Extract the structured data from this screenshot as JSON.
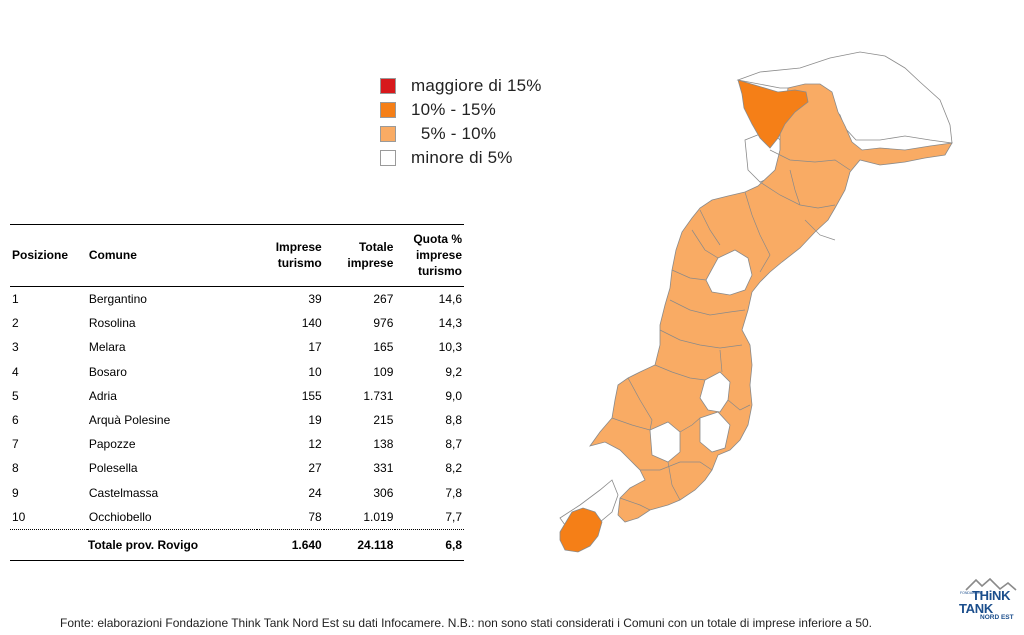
{
  "legend": [
    {
      "label": "maggiore di 15%",
      "color": "#d7191c"
    },
    {
      "label": "10% - 15%",
      "color": "#f57f17"
    },
    {
      "label": "  5% - 10%",
      "color": "#f9ab64"
    },
    {
      "label": "minore di 5%",
      "color": "#ffffff"
    }
  ],
  "table": {
    "headers": {
      "pos": "Posizione",
      "comune": "Comune",
      "imprese": [
        "Imprese",
        "turismo"
      ],
      "totale": [
        "Totale",
        "imprese"
      ],
      "quota": [
        "Quota %",
        "imprese",
        "turismo"
      ]
    },
    "rows": [
      {
        "pos": "1",
        "comune": "Bergantino",
        "imprese": "39",
        "totale": "267",
        "quota": "14,6"
      },
      {
        "pos": "2",
        "comune": "Rosolina",
        "imprese": "140",
        "totale": "976",
        "quota": "14,3"
      },
      {
        "pos": "3",
        "comune": "Melara",
        "imprese": "17",
        "totale": "165",
        "quota": "10,3"
      },
      {
        "pos": "4",
        "comune": "Bosaro",
        "imprese": "10",
        "totale": "109",
        "quota": "9,2"
      },
      {
        "pos": "5",
        "comune": "Adria",
        "imprese": "155",
        "totale": "1.731",
        "quota": "9,0"
      },
      {
        "pos": "6",
        "comune": "Arquà  Polesine",
        "imprese": "19",
        "totale": "215",
        "quota": "8,8"
      },
      {
        "pos": "7",
        "comune": "Papozze",
        "imprese": "12",
        "totale": "138",
        "quota": "8,7"
      },
      {
        "pos": "8",
        "comune": "Polesella",
        "imprese": "27",
        "totale": "331",
        "quota": "8,2"
      },
      {
        "pos": "9",
        "comune": "Castelmassa",
        "imprese": "24",
        "totale": "306",
        "quota": "7,8"
      },
      {
        "pos": "10",
        "comune": "Occhiobello",
        "imprese": "78",
        "totale": "1.019",
        "quota": "7,7"
      }
    ],
    "total": {
      "pos": "",
      "comune": "Totale prov. Rovigo",
      "imprese": "1.640",
      "totale": "24.118",
      "quota": "6,8"
    }
  },
  "map": {
    "fill_5_10": "#f9ab64",
    "fill_10_15": "#f57f17",
    "fill_lt5": "#ffffff",
    "border": "#8a8a8a"
  },
  "source": "Fonte: elaborazioni Fondazione Think Tank Nord Est su dati Infocamere. N.B.: non sono stati considerati i Comuni con un totale di imprese inferiore a 50.",
  "logo": {
    "think": "THiNK",
    "tank": "TANK",
    "nord_est": "NORD EST",
    "fondazione": "FONDAZIONE"
  }
}
